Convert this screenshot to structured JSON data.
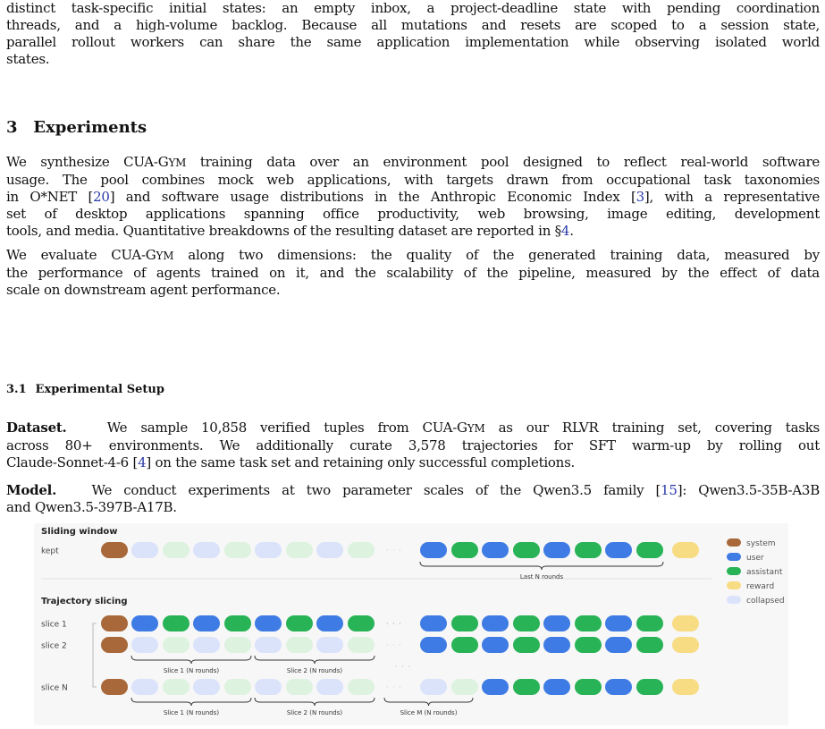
{
  "intro": {
    "lines": [
      "distinct task-specific initial states: an empty inbox, a project-deadline state with pending coordination",
      "threads, and a high-volume backlog.  Because all mutations and resets are scoped to a session state,",
      "parallel rollout workers can share the same application implementation while observing isolated world",
      "states."
    ]
  },
  "section": {
    "number": "3",
    "title": "Experiments"
  },
  "p1": {
    "line1": "We synthesize CUA-GYM training data over an environment pool designed to reflect real-world software",
    "line2": "usage. The pool combines mock web applications, with targets drawn from occupational task taxonomies",
    "line3_a": "in O*NET [",
    "ref_onet": "20",
    "line3_b": "] and software usage distributions in the Anthropic Economic Index [",
    "ref_aei": "3",
    "line3_c": "], with a representative",
    "line4": "set of desktop applications spanning office productivity, web browsing, image editing, development",
    "line5_a": "tools, and media. Quantitative breakdowns of the resulting dataset are reported in §",
    "ref_sec": "4",
    "line5_b": "."
  },
  "p2": {
    "lines": [
      "We evaluate CUA-GYM along two dimensions: the quality of the generated training data, measured by",
      "the performance of agents trained on it, and the scalability of the pipeline, measured by the effect of data",
      "scale on downstream agent performance."
    ]
  },
  "subsection": {
    "number": "3.1",
    "title": "Experimental Setup"
  },
  "dataset": {
    "label": "Dataset.",
    "line1": "We sample 10,858 verified tuples from CUA-GYM as our RLVR training set, covering tasks",
    "line2": "across 80+ environments.  We additionally curate 3,578 trajectories for SFT warm-up by rolling out",
    "line3_a": "Claude-Sonnet-4-6 [",
    "ref": "4",
    "line3_b": "] on the same task set and retaining only successful completions."
  },
  "model": {
    "label": "Model.",
    "line1_a": "We conduct experiments at two parameter scales of the Qwen3.5 family [",
    "ref": "15",
    "line1_b": "]: Qwen3.5-35B-A3B",
    "line2": "and Qwen3.5-397B-A17B."
  },
  "figure": {
    "section_sliding": "Sliding window",
    "section_slicing": "Trajectory slicing",
    "rows": [
      {
        "label": "kept",
        "kind": "sliding"
      },
      {
        "label": "slice 1",
        "kind": "full"
      },
      {
        "label": "slice 2",
        "kind": "slice2"
      },
      {
        "label": "slice N",
        "kind": "sliceN"
      }
    ],
    "dots": "· · ·",
    "brace_labels": {
      "last_n": "Last N rounds",
      "slice1": "Slice 1 (N rounds)",
      "slice2": "Slice 2 (N rounds)",
      "sliceM": "Slice M (N rounds)"
    },
    "legend": [
      {
        "label": "system",
        "color": "#a8683a"
      },
      {
        "label": "user",
        "color": "#3e7be4"
      },
      {
        "label": "assistant",
        "color": "#27b356"
      },
      {
        "label": "reward",
        "color": "#f7dc84"
      },
      {
        "label": "collapsed",
        "color": "#dbe3fb"
      }
    ],
    "colors": {
      "system": "#a8683a",
      "user": "#3e7be4",
      "assistant": "#27b356",
      "reward": "#f7dc84",
      "collapsed_user": "#dbe3fb",
      "collapsed_assistant": "#ddf2df",
      "background": "#f7f7f7"
    }
  }
}
